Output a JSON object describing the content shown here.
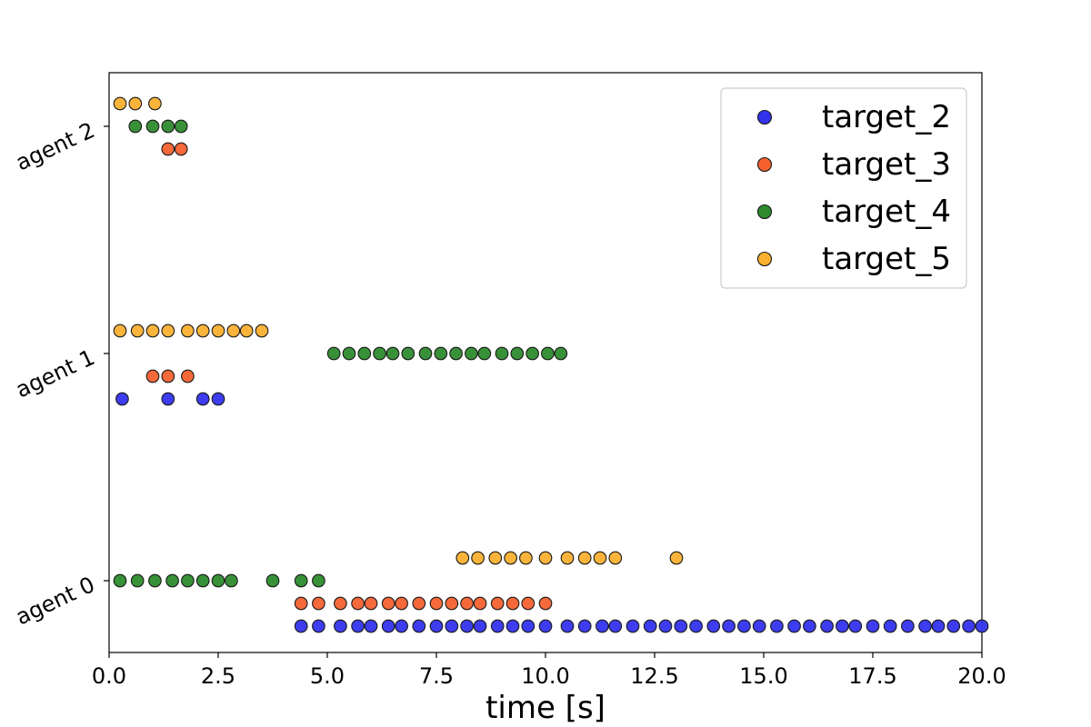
{
  "chart_data": {
    "type": "scatter",
    "title": "",
    "xlabel": "time [s]",
    "ylabel": "",
    "xlim": [
      0.0,
      20.0
    ],
    "xticks": [
      "0.0",
      "2.5",
      "5.0",
      "7.5",
      "10.0",
      "12.5",
      "15.0",
      "17.5",
      "20.0"
    ],
    "yticks": [
      "agent 0",
      "agent 1",
      "agent 2"
    ],
    "grid": false,
    "legend_position": "top-right",
    "series": [
      {
        "name": "target_2",
        "color": "#3333ee",
        "points": [
          {
            "agent": "agent 1",
            "x": [
              0.3,
              1.35,
              2.15,
              2.5
            ]
          },
          {
            "agent": "agent 0",
            "x": [
              4.4,
              4.8,
              5.3,
              5.7,
              6.0,
              6.4,
              6.7,
              7.1,
              7.5,
              7.85,
              8.2,
              8.5,
              8.9,
              9.25,
              9.6,
              10.0,
              10.5,
              10.9,
              11.3,
              11.6,
              12.0,
              12.4,
              12.75,
              13.1,
              13.45,
              13.85,
              14.2,
              14.55,
              14.9,
              15.3,
              15.7,
              16.05,
              16.45,
              16.8,
              17.1,
              17.5,
              17.9,
              18.3,
              18.7,
              19.0,
              19.35,
              19.7,
              20.0
            ]
          }
        ]
      },
      {
        "name": "target_3",
        "color": "#f4612f",
        "points": [
          {
            "agent": "agent 2",
            "x": [
              1.35,
              1.65
            ]
          },
          {
            "agent": "agent 1",
            "x": [
              1.0,
              1.35,
              1.8
            ]
          },
          {
            "agent": "agent 0",
            "x": [
              4.4,
              4.8,
              5.3,
              5.7,
              6.0,
              6.4,
              6.7,
              7.1,
              7.5,
              7.85,
              8.2,
              8.5,
              8.9,
              9.25,
              9.6,
              10.0
            ]
          }
        ]
      },
      {
        "name": "target_4",
        "color": "#2d8b2d",
        "points": [
          {
            "agent": "agent 2",
            "x": [
              0.6,
              1.0,
              1.35,
              1.65
            ]
          },
          {
            "agent": "agent 1",
            "x": [
              5.15,
              5.5,
              5.85,
              6.2,
              6.5,
              6.85,
              7.25,
              7.6,
              7.95,
              8.3,
              8.6,
              9.0,
              9.35,
              9.7,
              10.05,
              10.35
            ]
          },
          {
            "agent": "agent 0",
            "x": [
              0.25,
              0.65,
              1.05,
              1.45,
              1.8,
              2.15,
              2.5,
              2.8,
              3.75,
              4.4,
              4.8
            ]
          }
        ]
      },
      {
        "name": "target_5",
        "color": "#fbb030",
        "points": [
          {
            "agent": "agent 2",
            "x": [
              0.25,
              0.6,
              1.05
            ]
          },
          {
            "agent": "agent 1",
            "x": [
              0.25,
              0.65,
              1.0,
              1.35,
              1.8,
              2.15,
              2.5,
              2.85,
              3.15,
              3.5
            ]
          },
          {
            "agent": "agent 0",
            "x": [
              8.1,
              8.45,
              8.85,
              9.2,
              9.55,
              10.0,
              10.5,
              10.9,
              11.25,
              11.6,
              13.0
            ]
          }
        ]
      }
    ]
  }
}
